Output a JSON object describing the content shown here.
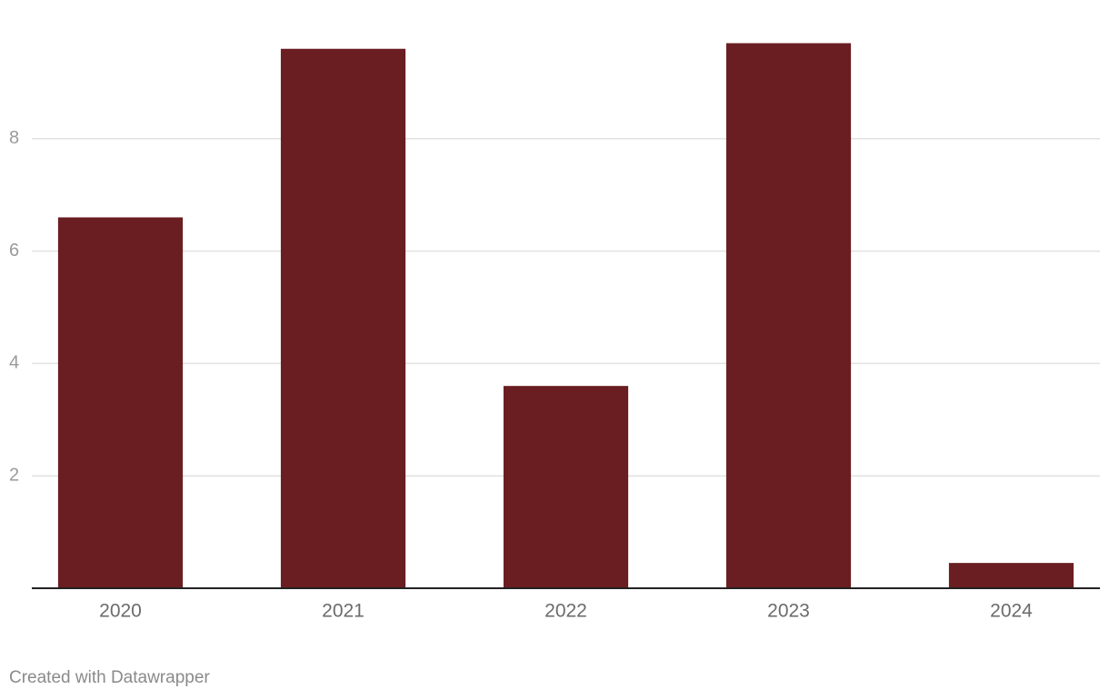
{
  "chart_data": {
    "type": "bar",
    "categories": [
      "2020",
      "2021",
      "2022",
      "2023",
      "2024"
    ],
    "values": [
      6.6,
      9.6,
      3.6,
      9.7,
      0.45
    ],
    "color": "#6a1e21",
    "ylim": [
      0,
      10
    ],
    "yticks": [
      2,
      4,
      6,
      8
    ],
    "grid": true,
    "footer": "Created with Datawrapper"
  }
}
